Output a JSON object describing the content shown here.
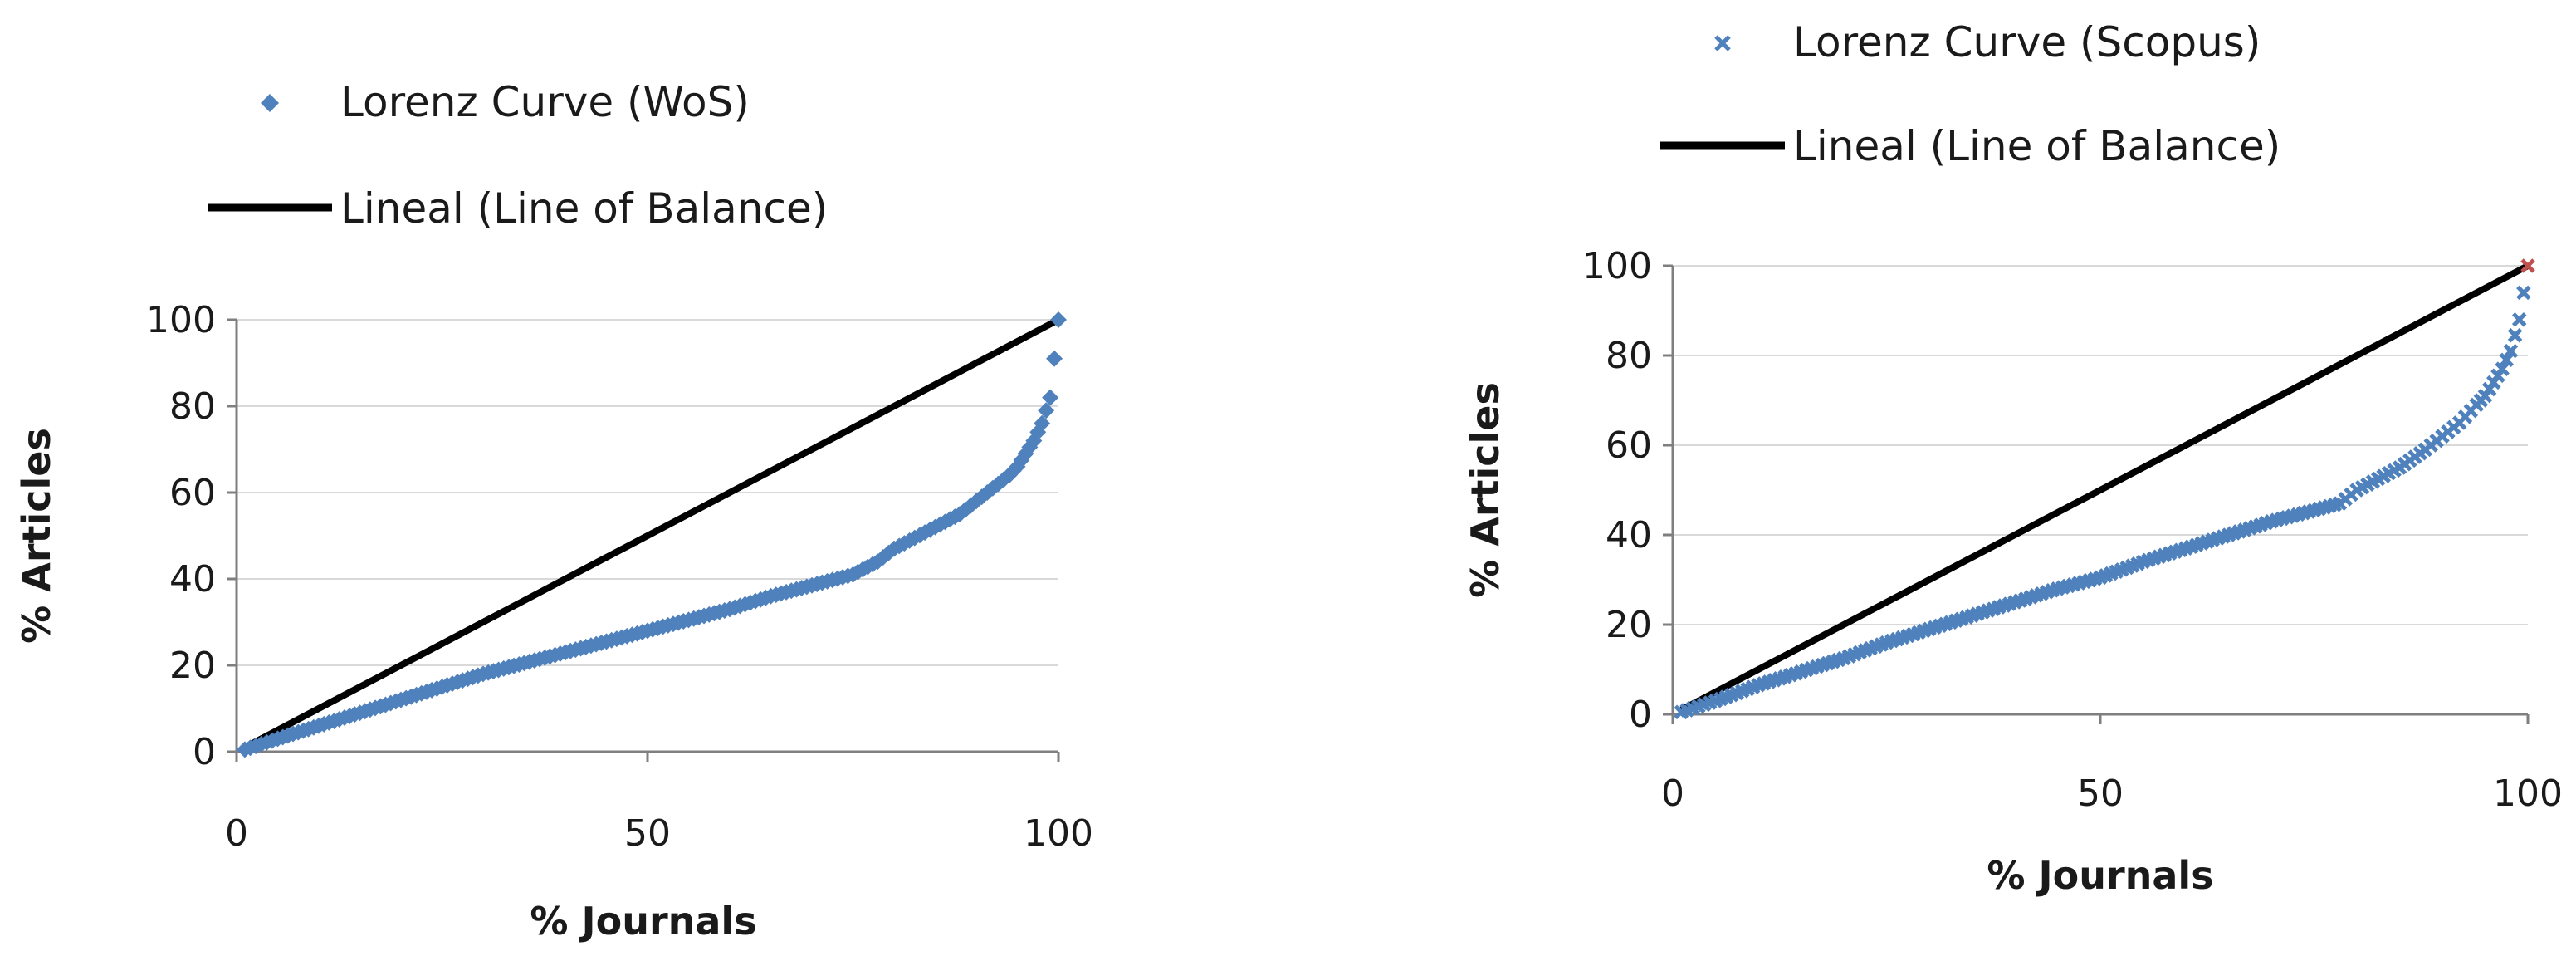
{
  "chart_data": [
    {
      "type": "scatter",
      "xlabel": "% Journals",
      "ylabel": "% Articles",
      "xlim": [
        0,
        100
      ],
      "ylim": [
        0,
        100
      ],
      "x_ticks": [
        0,
        50,
        100
      ],
      "y_ticks": [
        0,
        20,
        40,
        60,
        80,
        100
      ],
      "grid": "horizontal",
      "legend_position": "top",
      "series": [
        {
          "name": "Lorenz Curve (WoS)",
          "kind": "scatter",
          "marker": "diamond",
          "color": "#4f81bd",
          "x": [
            1,
            5,
            10,
            15,
            20,
            25,
            30,
            35,
            40,
            45,
            50,
            55,
            60,
            65,
            70,
            75,
            78,
            80,
            85,
            88,
            90,
            92,
            94,
            95,
            96,
            97,
            98,
            99,
            100
          ],
          "y": [
            0.5,
            3,
            6,
            9,
            12,
            15,
            18,
            20.5,
            23,
            25.5,
            28,
            30.5,
            33,
            36,
            38.5,
            41,
            44,
            47,
            52,
            55,
            58,
            61,
            64,
            66,
            69,
            72,
            76,
            82,
            100
          ]
        },
        {
          "name": "Lineal (Line of Balance)",
          "kind": "line",
          "color": "#000000",
          "x": [
            1,
            100
          ],
          "y": [
            1,
            100
          ]
        }
      ]
    },
    {
      "type": "scatter",
      "xlabel": "% Journals",
      "ylabel": "% Articles",
      "xlim": [
        0,
        100
      ],
      "ylim": [
        0,
        100
      ],
      "x_ticks": [
        0,
        50,
        100
      ],
      "y_ticks": [
        0,
        20,
        40,
        60,
        80,
        100
      ],
      "grid": "horizontal",
      "legend_position": "top",
      "series": [
        {
          "name": "Lorenz Curve (Scopus)",
          "kind": "scatter",
          "marker": "x",
          "color": "#4f81bd",
          "x": [
            1,
            5,
            10,
            15,
            20,
            25,
            30,
            35,
            40,
            45,
            50,
            55,
            60,
            65,
            70,
            75,
            78,
            80,
            85,
            88,
            90,
            92,
            94,
            95,
            96,
            97,
            98,
            99,
            100
          ],
          "y": [
            0.5,
            3,
            6.5,
            9.5,
            12.5,
            16,
            19,
            22,
            25,
            28,
            30.5,
            34,
            37,
            40,
            43,
            45.5,
            47,
            50,
            55,
            59,
            62,
            65,
            69,
            71,
            74,
            77,
            81,
            88,
            100
          ]
        },
        {
          "name": "Lineal (Line of Balance)",
          "kind": "line",
          "color": "#000000",
          "x": [
            1,
            100
          ],
          "y": [
            1,
            100
          ]
        }
      ]
    }
  ]
}
